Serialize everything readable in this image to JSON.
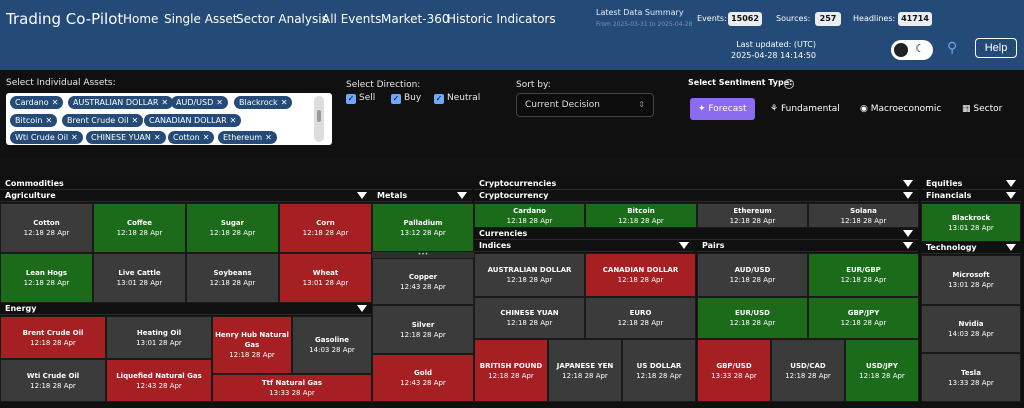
{
  "header": {
    "brand": "Trading Co-Pilot",
    "nav": [
      "Home",
      "Single Asset",
      "Sector Analysis",
      "All Events",
      "Market-360",
      "Historic Indicators"
    ],
    "summary_title": "Latest Data Summary",
    "summary_range": "From 2025-03-31 to 2025-04-28",
    "events_label": "Events:",
    "events_value": "15062",
    "sources_label": "Sources:",
    "sources_value": "257",
    "headlines_label": "Headlines:",
    "headlines_value": "41714",
    "updated_label": "Last updated: (UTC)",
    "updated_value": "2025-04-28 14:14:50",
    "help": "Help"
  },
  "controls": {
    "assets_label": "Select Individual Assets:",
    "assets": [
      "Cardano",
      "AUSTRALIAN DOLLAR",
      "AUD/USD",
      "Blackrock",
      "Bitcoin",
      "Brent Crude Oil",
      "CANADIAN DOLLAR",
      "Wti Crude Oil",
      "CHINESE YUAN",
      "Cotton",
      "Ethereum"
    ],
    "direction_label": "Select Direction:",
    "directions": [
      "Sell",
      "Buy",
      "Neutral"
    ],
    "sort_label": "Sort by:",
    "sort_value": "Current Decision",
    "sentiment_label": "Select Sentiment Type:",
    "sentiments": [
      "Forecast",
      "Fundamental",
      "Macroeconomic",
      "Sector"
    ]
  },
  "sections": {
    "commodities": "Commodities",
    "agriculture": "Agriculture",
    "metals": "Metals",
    "energy": "Energy",
    "crypto": "Cryptocurrencies",
    "crypto2": "Cryptocurrency",
    "currencies": "Currencies",
    "indices": "Indices",
    "pairs": "Pairs",
    "equities": "Equities",
    "financials": "Financials",
    "technology": "Technology"
  },
  "cells": {
    "cotton": {
      "name": "Cotton",
      "time": "12:18 28 Apr",
      "color": "#3b3b3b"
    },
    "coffee": {
      "name": "Coffee",
      "time": "12:18 28 Apr",
      "color": "#1b6b1b"
    },
    "sugar": {
      "name": "Sugar",
      "time": "12:18 28 Apr",
      "color": "#1b6b1b"
    },
    "corn": {
      "name": "Corn",
      "time": "12:18 28 Apr",
      "color": "#a51f23"
    },
    "leanhogs": {
      "name": "Lean Hogs",
      "time": "12:18 28 Apr",
      "color": "#1b6b1b"
    },
    "livecattle": {
      "name": "Live Cattle",
      "time": "13:01 28 Apr",
      "color": "#3b3b3b"
    },
    "soybeans": {
      "name": "Soybeans",
      "time": "12:18 28 Apr",
      "color": "#3b3b3b"
    },
    "wheat": {
      "name": "Wheat",
      "time": "13:01 28 Apr",
      "color": "#a51f23"
    },
    "palladium": {
      "name": "Palladium",
      "time": "13:12 28 Apr",
      "color": "#1b6b1b"
    },
    "copper": {
      "name": "Copper",
      "time": "12:43 28 Apr",
      "color": "#3b3b3b"
    },
    "silver": {
      "name": "Silver",
      "time": "12:18 28 Apr",
      "color": "#3b3b3b"
    },
    "gold": {
      "name": "Gold",
      "time": "12:43 28 Apr",
      "color": "#a51f23"
    },
    "brent": {
      "name": "Brent Crude Oil",
      "time": "12:18 28 Apr",
      "color": "#a51f23"
    },
    "heating": {
      "name": "Heating Oil",
      "time": "13:01 28 Apr",
      "color": "#3b3b3b"
    },
    "henryhub": {
      "name": "Henry Hub Natural Gas",
      "time": "12:18 28 Apr",
      "color": "#a51f23"
    },
    "gasoline": {
      "name": "Gasoline",
      "time": "14:03 28 Apr",
      "color": "#3b3b3b"
    },
    "wti": {
      "name": "Wti Crude Oil",
      "time": "12:18 28 Apr",
      "color": "#3b3b3b"
    },
    "lng": {
      "name": "Liquefied Natural Gas",
      "time": "12:43 28 Apr",
      "color": "#a51f23"
    },
    "ttf": {
      "name": "Ttf Natural Gas",
      "time": "13:33 28 Apr",
      "color": "#a51f23"
    },
    "cardano": {
      "name": "Cardano",
      "time": "12:18 28 Apr",
      "color": "#1b6b1b"
    },
    "bitcoin": {
      "name": "Bitcoin",
      "time": "12:18 28 Apr",
      "color": "#1b6b1b"
    },
    "ethereum": {
      "name": "Ethereum",
      "time": "12:18 28 Apr",
      "color": "#3b3b3b"
    },
    "solana": {
      "name": "Solana",
      "time": "12:18 28 Apr",
      "color": "#3b3b3b"
    },
    "aud": {
      "name": "AUSTRALIAN DOLLAR",
      "time": "12:18 28 Apr",
      "color": "#3b3b3b"
    },
    "cad": {
      "name": "CANADIAN DOLLAR",
      "time": "12:18 28 Apr",
      "color": "#a51f23"
    },
    "cny": {
      "name": "CHINESE YUAN",
      "time": "12:18 28 Apr",
      "color": "#3b3b3b"
    },
    "euro": {
      "name": "EURO",
      "time": "12:18 28 Apr",
      "color": "#3b3b3b"
    },
    "gbp": {
      "name": "BRITISH POUND",
      "time": "12:18 28 Apr",
      "color": "#a51f23"
    },
    "jpy": {
      "name": "JAPANESE YEN",
      "time": "12:18 28 Apr",
      "color": "#3b3b3b"
    },
    "usd": {
      "name": "US DOLLAR",
      "time": "12:18 28 Apr",
      "color": "#3b3b3b"
    },
    "audusd": {
      "name": "AUD/USD",
      "time": "12:18 28 Apr",
      "color": "#3b3b3b"
    },
    "eurgbp": {
      "name": "EUR/GBP",
      "time": "12:18 28 Apr",
      "color": "#1b6b1b"
    },
    "eurusd": {
      "name": "EUR/USD",
      "time": "12:18 28 Apr",
      "color": "#1b6b1b"
    },
    "gbpjpy": {
      "name": "GBP/JPY",
      "time": "12:18 28 Apr",
      "color": "#1b6b1b"
    },
    "gbpusd": {
      "name": "GBP/USD",
      "time": "13:33 28 Apr",
      "color": "#a51f23"
    },
    "usdcad": {
      "name": "USD/CAD",
      "time": "12:18 28 Apr",
      "color": "#3b3b3b"
    },
    "usdjpy": {
      "name": "USD/JPY",
      "time": "12:18 28 Apr",
      "color": "#1b6b1b"
    },
    "blackrock": {
      "name": "Blackrock",
      "time": "13:01 28 Apr",
      "color": "#1b6b1b"
    },
    "microsoft": {
      "name": "Microsoft",
      "time": "13:01 28 Apr",
      "color": "#3b3b3b"
    },
    "nvidia": {
      "name": "Nvidia",
      "time": "14:03 28 Apr",
      "color": "#3b3b3b"
    },
    "tesla": {
      "name": "Tesla",
      "time": "13:33 28 Apr",
      "color": "#3b3b3b"
    }
  }
}
